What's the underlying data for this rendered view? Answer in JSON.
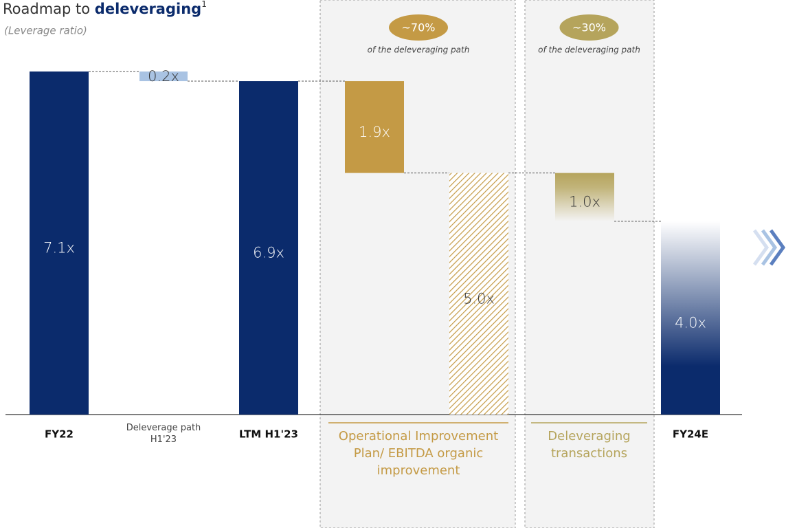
{
  "chart_data": {
    "type": "waterfall",
    "title": "Roadmap to",
    "title_bold": "deleveraging",
    "title_note": "1",
    "subtitle": "(Leverage ratio)",
    "categories": [
      "FY22",
      "Deleverage path H1'23",
      "LTM H1'23",
      null,
      null,
      null,
      "FY24E"
    ],
    "values": [
      7.1,
      0.2,
      6.9,
      1.9,
      5.0,
      1.0,
      4.0
    ],
    "value_labels": [
      "7.1x",
      "0.2x",
      "6.9x",
      "1.9x",
      "5.0x",
      "1.0x",
      "4.0x"
    ],
    "kinds": [
      "total",
      "step",
      "total",
      "step",
      "hatched",
      "fade-down",
      "fade-up"
    ],
    "colors": [
      "#0b2b6c",
      "#a9c3e3",
      "#0b2b6c",
      "#c49a45",
      "#c49a45",
      "#b5a45c",
      "#0b2b6c"
    ],
    "label_colors": [
      "#ffffff",
      "#333333",
      "#ffffff",
      "#ffffff",
      "#333333",
      "#333333",
      "#ffffff"
    ],
    "groups": [
      {
        "label": "Operational Improvement Plan/ EBITDA organic improvement",
        "badge": "~70%",
        "note": "of the deleveraging path",
        "color": "#c49a45"
      },
      {
        "label": "Deleveraging transactions",
        "badge": "~30%",
        "note": "of the deleveraging path",
        "color": "#b5a45c"
      }
    ],
    "ylim": [
      0,
      7.1
    ]
  }
}
